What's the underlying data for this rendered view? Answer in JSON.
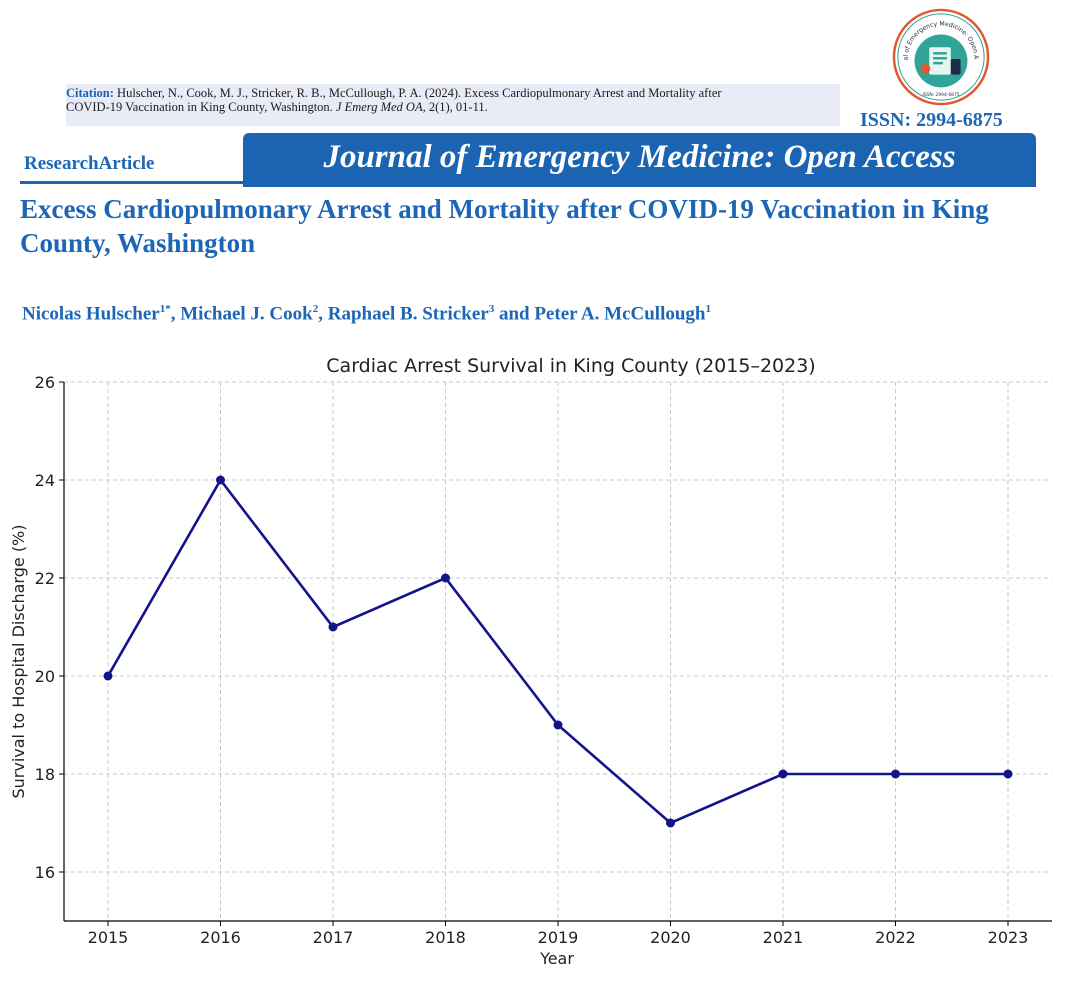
{
  "header": {
    "citation_label": "Citation:",
    "citation_line1": "Hulscher, N., Cook, M. J., Stricker, R. B., McCullough, P. A. (2024). Excess Cardiopulmonary Arrest and Mortality after",
    "citation_line2_pre": "COVID-19 Vaccination in King County, Washington.",
    "citation_journal": "J Emerg Med OA,",
    "citation_line2_post": "2(1), 01-11.",
    "issn": "ISSN: 2994-6875",
    "logo_text_top": "Journal of Emergency Medicine: Open Access",
    "logo_text_bottom": "ISSN: 2994-6875",
    "research_article": "ResearchArticle",
    "journal_title": "Journal of Emergency Medicine: Open Access",
    "paper_title": "Excess Cardiopulmonary Arrest and Mortality after COVID-19 Vaccination in King County, Washington",
    "authors": [
      {
        "name": "Nicolas Hulscher",
        "sup": "1*",
        "sep": ", "
      },
      {
        "name": "Michael J. Cook",
        "sup": "2",
        "sep": ", "
      },
      {
        "name": "Raphael B. Stricker",
        "sup": "3",
        "sep": " and "
      },
      {
        "name": "Peter A. McCullough",
        "sup": "1",
        "sep": ""
      }
    ]
  },
  "colors": {
    "brand_blue": "#1d66b5",
    "line": "#13138a",
    "grid": "#c8c8c8"
  },
  "chart_data": {
    "type": "line",
    "title": "Cardiac Arrest Survival in King County (2015–2023)",
    "xlabel": "Year",
    "ylabel": "Survival to Hospital Discharge (%)",
    "x": [
      "2015",
      "2016",
      "2017",
      "2018",
      "2019",
      "2020",
      "2021",
      "2022",
      "2023"
    ],
    "y": [
      20,
      24,
      21,
      22,
      19,
      17,
      18,
      18,
      18
    ],
    "yticks": [
      "16",
      "18",
      "20",
      "22",
      "24",
      "26"
    ],
    "ylim": [
      15,
      26
    ],
    "grid": true,
    "marker": "circle"
  }
}
